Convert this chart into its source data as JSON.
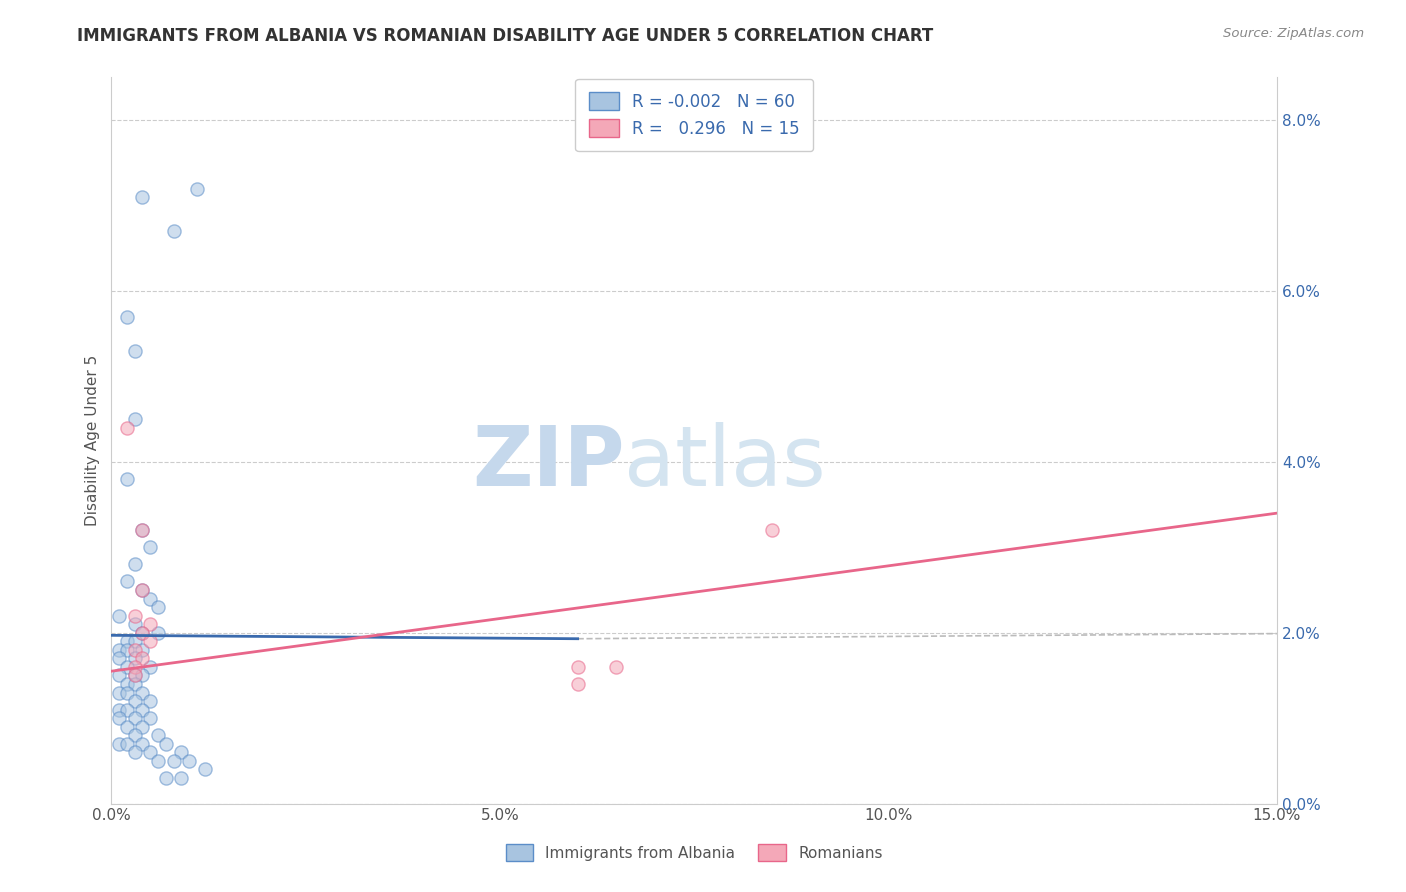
{
  "title": "IMMIGRANTS FROM ALBANIA VS ROMANIAN DISABILITY AGE UNDER 5 CORRELATION CHART",
  "source": "Source: ZipAtlas.com",
  "ylabel": "Disability Age Under 5",
  "legend_entries": [
    {
      "label": "Immigrants from Albania",
      "R": "-0.002",
      "N": "60",
      "color": "#a8c4e0",
      "edge": "#5b8dc8"
    },
    {
      "label": "Romanians",
      "R": "0.296",
      "N": "15",
      "color": "#f4a8b8",
      "edge": "#e8668a"
    }
  ],
  "albania_scatter": [
    [
      0.004,
      0.071
    ],
    [
      0.008,
      0.067
    ],
    [
      0.011,
      0.072
    ],
    [
      0.002,
      0.057
    ],
    [
      0.003,
      0.053
    ],
    [
      0.003,
      0.045
    ],
    [
      0.002,
      0.038
    ],
    [
      0.004,
      0.032
    ],
    [
      0.005,
      0.03
    ],
    [
      0.003,
      0.028
    ],
    [
      0.002,
      0.026
    ],
    [
      0.004,
      0.025
    ],
    [
      0.005,
      0.024
    ],
    [
      0.006,
      0.023
    ],
    [
      0.001,
      0.022
    ],
    [
      0.003,
      0.021
    ],
    [
      0.004,
      0.02
    ],
    [
      0.006,
      0.02
    ],
    [
      0.002,
      0.019
    ],
    [
      0.003,
      0.019
    ],
    [
      0.001,
      0.018
    ],
    [
      0.002,
      0.018
    ],
    [
      0.004,
      0.018
    ],
    [
      0.001,
      0.017
    ],
    [
      0.003,
      0.017
    ],
    [
      0.005,
      0.016
    ],
    [
      0.002,
      0.016
    ],
    [
      0.001,
      0.015
    ],
    [
      0.003,
      0.015
    ],
    [
      0.004,
      0.015
    ],
    [
      0.002,
      0.014
    ],
    [
      0.003,
      0.014
    ],
    [
      0.001,
      0.013
    ],
    [
      0.004,
      0.013
    ],
    [
      0.002,
      0.013
    ],
    [
      0.005,
      0.012
    ],
    [
      0.003,
      0.012
    ],
    [
      0.001,
      0.011
    ],
    [
      0.002,
      0.011
    ],
    [
      0.004,
      0.011
    ],
    [
      0.003,
      0.01
    ],
    [
      0.005,
      0.01
    ],
    [
      0.001,
      0.01
    ],
    [
      0.002,
      0.009
    ],
    [
      0.004,
      0.009
    ],
    [
      0.003,
      0.008
    ],
    [
      0.006,
      0.008
    ],
    [
      0.001,
      0.007
    ],
    [
      0.002,
      0.007
    ],
    [
      0.004,
      0.007
    ],
    [
      0.007,
      0.007
    ],
    [
      0.005,
      0.006
    ],
    [
      0.003,
      0.006
    ],
    [
      0.009,
      0.006
    ],
    [
      0.006,
      0.005
    ],
    [
      0.01,
      0.005
    ],
    [
      0.008,
      0.005
    ],
    [
      0.012,
      0.004
    ],
    [
      0.007,
      0.003
    ],
    [
      0.009,
      0.003
    ]
  ],
  "romanian_scatter": [
    [
      0.002,
      0.044
    ],
    [
      0.004,
      0.032
    ],
    [
      0.004,
      0.025
    ],
    [
      0.003,
      0.022
    ],
    [
      0.005,
      0.021
    ],
    [
      0.004,
      0.02
    ],
    [
      0.005,
      0.019
    ],
    [
      0.003,
      0.018
    ],
    [
      0.004,
      0.017
    ],
    [
      0.003,
      0.016
    ],
    [
      0.003,
      0.015
    ],
    [
      0.085,
      0.032
    ],
    [
      0.065,
      0.016
    ],
    [
      0.06,
      0.016
    ],
    [
      0.06,
      0.014
    ]
  ],
  "albania_line_color": "#3a6aad",
  "romanian_line_color": "#e8668a",
  "dashed_line_color": "#bbbbbb",
  "watermark_zip": "ZIP",
  "watermark_atlas": "atlas",
  "watermark_color_zip": "#c5d8ec",
  "watermark_color_atlas": "#c5d8ec",
  "background_color": "#ffffff",
  "scatter_alpha": 0.55,
  "scatter_size": 90,
  "xlim": [
    0,
    0.15
  ],
  "ylim": [
    0,
    0.085
  ],
  "yticks": [
    0.0,
    0.02,
    0.04,
    0.06,
    0.08
  ],
  "xticks": [
    0.0,
    0.05,
    0.1,
    0.15
  ],
  "xtick_labels": [
    "0.0%",
    "5.0%",
    "10.0%",
    "15.0%"
  ],
  "ytick_labels": [
    "0.0%",
    "2.0%",
    "4.0%",
    "6.0%",
    "8.0%"
  ],
  "albania_line_x_end": 0.06,
  "albania_line_y_start": 0.0197,
  "albania_line_y_end": 0.0193,
  "romanian_line_x_start": 0.0,
  "romanian_line_y_start": 0.0155,
  "romanian_line_x_end": 0.15,
  "romanian_line_y_end": 0.034
}
